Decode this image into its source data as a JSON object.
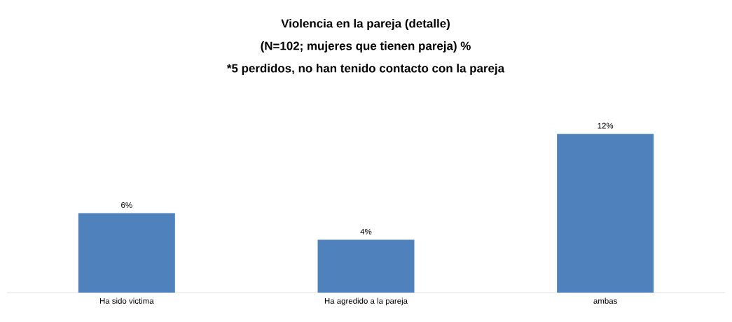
{
  "chart_data": {
    "type": "bar",
    "title": "Violencia en la pareja (detalle)",
    "subtitle": "(N=102; mujeres que tienen pareja) %",
    "annotations": [
      "*5 perdidos, no han tenido contacto con la pareja"
    ],
    "categories": [
      "Ha sido victima",
      "Ha agredido a la pareja",
      "ambas"
    ],
    "values": [
      6,
      4,
      12
    ],
    "value_labels": [
      "6%",
      "4%",
      "12%"
    ],
    "color": "#4f81bd"
  }
}
